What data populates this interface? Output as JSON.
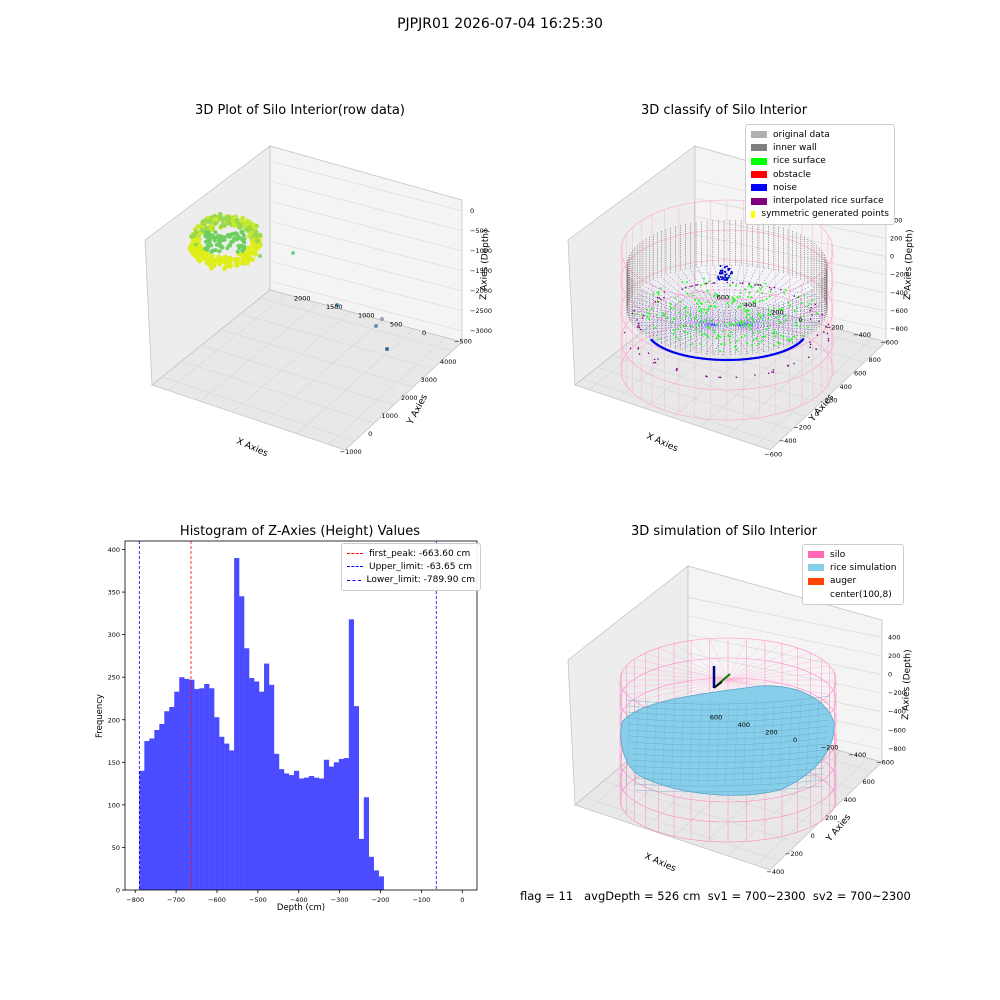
{
  "suptitle": "PJPJR01 2026-07-04 16:25:30",
  "status_line": "flag = 11   avgDepth = 526 cm  sv1 = 700~2300  sv2 = 700~2300",
  "colors": {
    "hist_bar": "#4b4bff",
    "peak_line": "#ff0000",
    "limit_line": "#0000ff",
    "pane": "#f2f2f2",
    "grid": "#d8d8d8"
  },
  "chart_data": [
    {
      "type": "scatter",
      "title": "3D Plot of Silo Interior(row data)",
      "xlabel": "X Axies",
      "ylabel": "Y Axies",
      "zlabel": "Z Axies (Depth)",
      "x_ticks": [
        "−1000",
        "0",
        "1000",
        "2000",
        "3000",
        "4000"
      ],
      "y_ticks": [
        "−500",
        "0",
        "500",
        "1000",
        "1500",
        "2000"
      ],
      "z_ticks": [
        "0",
        "−500",
        "−1000",
        "−1500",
        "−2000",
        "−2500",
        "−3000"
      ],
      "xlim": [
        -1000,
        4000
      ],
      "ylim": [
        -500,
        2000
      ],
      "zlim": [
        -3000,
        0
      ]
    },
    {
      "type": "scatter",
      "title": "3D classify of Silo Interior",
      "xlabel": "X Axies",
      "ylabel": "Y Axies",
      "zlabel": "Z Axies (Depth)",
      "x_ticks": [
        "−600",
        "−400",
        "−200",
        "0",
        "200",
        "400",
        "600",
        "800"
      ],
      "y_ticks": [
        "−600",
        "−400",
        "−200",
        "0",
        "200",
        "400",
        "600"
      ],
      "z_ticks": [
        "400",
        "200",
        "0",
        "−200",
        "−400",
        "−600",
        "−800"
      ],
      "legend_placement": "top-right",
      "legend": [
        {
          "label": "original data",
          "color": "#b0b0b0"
        },
        {
          "label": "inner wall",
          "color": "#808080"
        },
        {
          "label": "rice surface",
          "color": "#00ff00"
        },
        {
          "label": "obstacle",
          "color": "#ff0000"
        },
        {
          "label": "noise",
          "color": "#0000ff"
        },
        {
          "label": "interpolated rice surface",
          "color": "#800080"
        },
        {
          "label": "symmetric generated points",
          "color": "#ffff00"
        }
      ]
    },
    {
      "type": "bar",
      "title": "Histogram of Z-Axies (Height) Values",
      "xlabel": "Depth (cm)",
      "ylabel": "Frequency",
      "xlim": [
        -825,
        36
      ],
      "ylim": [
        0,
        410
      ],
      "x_ticks": [
        -800,
        -700,
        -600,
        -500,
        -400,
        -300,
        -200,
        -100,
        0
      ],
      "y_ticks": [
        0,
        50,
        100,
        150,
        200,
        250,
        300,
        350,
        400
      ],
      "bin_start": -789.9,
      "bin_width": 12.2,
      "values": [
        140,
        175,
        178,
        188,
        195,
        210,
        215,
        233,
        250,
        248,
        247,
        236,
        237,
        242,
        237,
        203,
        180,
        172,
        164,
        390,
        345,
        284,
        249,
        245,
        233,
        266,
        241,
        160,
        142,
        137,
        135,
        140,
        131,
        132,
        134,
        132,
        131,
        153,
        145,
        150,
        154,
        155,
        318,
        216,
        60,
        109,
        39,
        23,
        16
      ],
      "vlines": [
        {
          "name": "first_peak",
          "x": -663.6,
          "color": "#ff0000"
        },
        {
          "name": "Upper_limit",
          "x": -63.65,
          "color": "#0000ff"
        },
        {
          "name": "Lower_limit",
          "x": -789.9,
          "color": "#0000ff"
        }
      ],
      "legend_placement": "top-right",
      "legend": [
        {
          "label": "first_peak: -663.60 cm",
          "color": "#ff0000"
        },
        {
          "label": "Upper_limit: -63.65 cm",
          "color": "#0000ff"
        },
        {
          "label": "Lower_limit: -789.90 cm",
          "color": "#0000ff"
        }
      ]
    },
    {
      "type": "scatter",
      "title": "3D simulation of Silo Interior",
      "xlabel": "X Axies",
      "ylabel": "Y Axies",
      "zlabel": "Z Axies (Depth)",
      "x_ticks": [
        "−400",
        "−200",
        "0",
        "200",
        "400",
        "600"
      ],
      "y_ticks": [
        "−600",
        "−400",
        "−200",
        "0",
        "200",
        "400",
        "600"
      ],
      "z_ticks": [
        "400",
        "200",
        "0",
        "−200",
        "−400",
        "−600",
        "−800"
      ],
      "legend_placement": "top-right",
      "legend": [
        {
          "label": "silo",
          "color": "#ff69b4"
        },
        {
          "label": "rice simulation",
          "color": "#87ceeb"
        },
        {
          "label": "auger",
          "color": "#ff4500"
        },
        {
          "label": "center(100,8)",
          "color": "#ffffff"
        }
      ]
    }
  ]
}
